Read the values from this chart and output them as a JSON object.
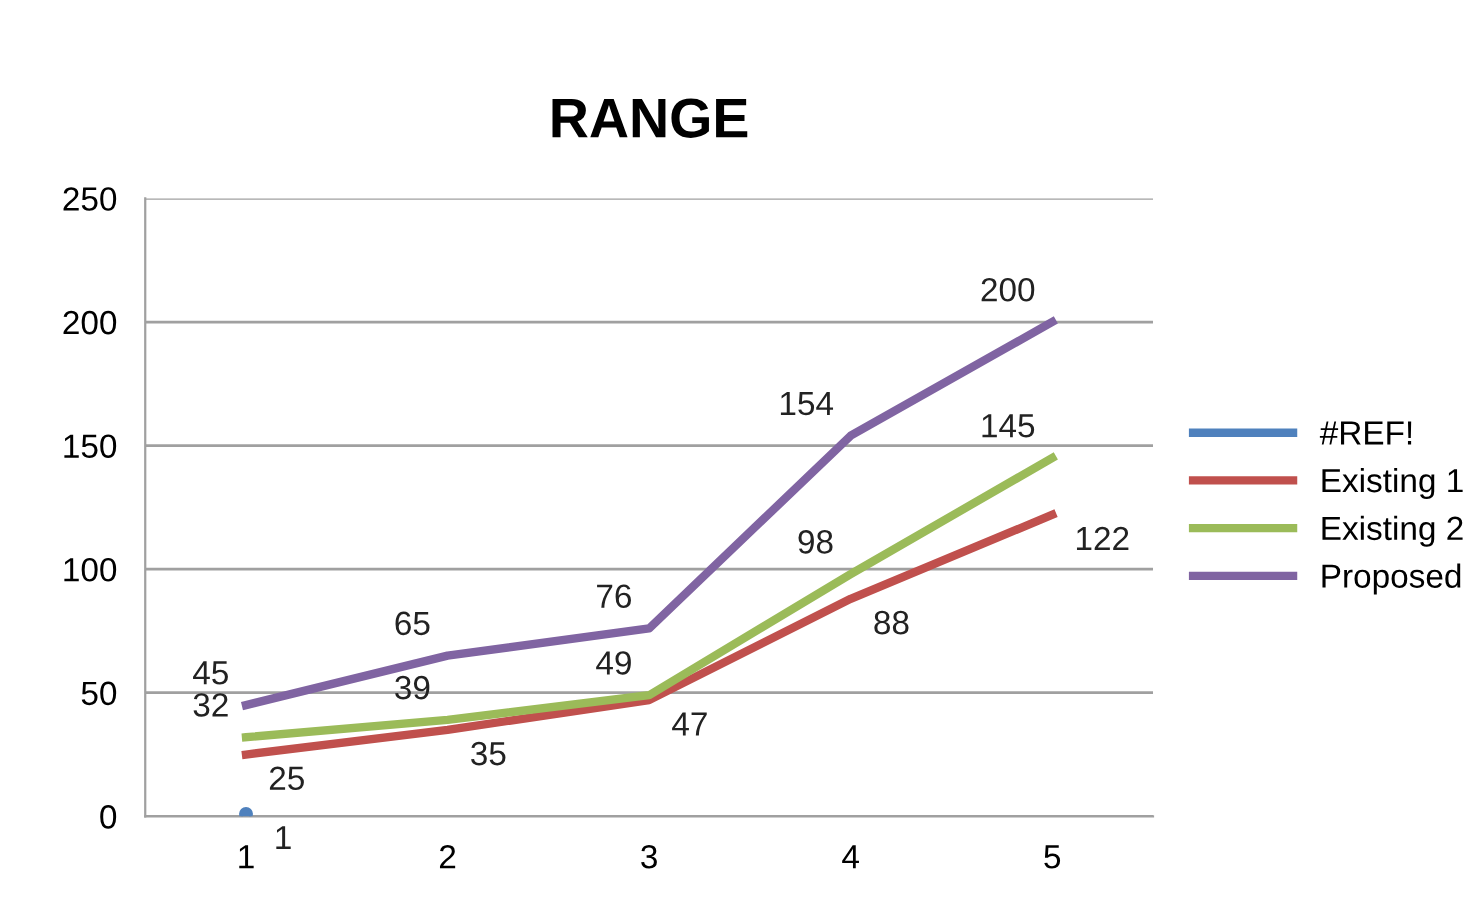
{
  "chart_data": {
    "type": "line",
    "title": "RANGE",
    "categories": [
      "1",
      "2",
      "3",
      "4",
      "5"
    ],
    "series": [
      {
        "name": "#REF!",
        "color": "#4f81bd",
        "marker": "circle",
        "values": [
          1,
          null,
          null,
          null,
          null
        ]
      },
      {
        "name": "Existing 1",
        "color": "#c0504d",
        "values": [
          25,
          35,
          47,
          88,
          122
        ]
      },
      {
        "name": "Existing 2",
        "color": "#9bbb59",
        "values": [
          32,
          39,
          49,
          98,
          145
        ]
      },
      {
        "name": "Proposed",
        "color": "#8064a2",
        "values": [
          45,
          65,
          76,
          154,
          200
        ]
      }
    ],
    "ylim": [
      0,
      250
    ],
    "yticks": [
      0,
      50,
      100,
      150,
      200,
      250
    ],
    "grid": "y",
    "legend": "right",
    "data_labels": true,
    "marker": "none",
    "line_style": "solid"
  }
}
